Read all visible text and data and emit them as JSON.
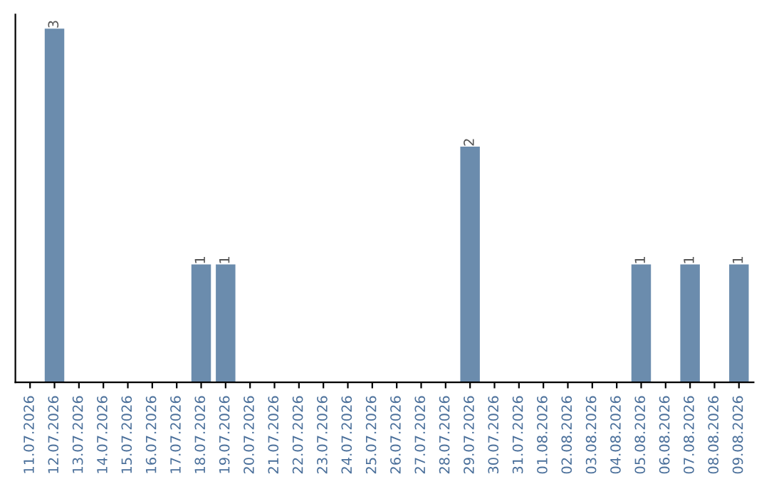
{
  "chart_data": {
    "type": "bar",
    "categories": [
      "11.07.2026",
      "12.07.2026",
      "13.07.2026",
      "14.07.2026",
      "15.07.2026",
      "16.07.2026",
      "17.07.2026",
      "18.07.2026",
      "19.07.2026",
      "20.07.2026",
      "21.07.2026",
      "22.07.2026",
      "23.07.2026",
      "24.07.2026",
      "25.07.2026",
      "26.07.2026",
      "27.07.2026",
      "28.07.2026",
      "29.07.2026",
      "30.07.2026",
      "31.07.2026",
      "01.08.2026",
      "02.08.2026",
      "03.08.2026",
      "04.08.2026",
      "05.08.2026",
      "06.08.2026",
      "07.08.2026",
      "08.08.2026",
      "09.08.2026"
    ],
    "values": [
      0,
      3,
      0,
      0,
      0,
      0,
      0,
      1,
      1,
      0,
      0,
      0,
      0,
      0,
      0,
      0,
      0,
      0,
      2,
      0,
      0,
      0,
      0,
      0,
      0,
      1,
      0,
      1,
      0,
      1
    ],
    "value_labels": [
      null,
      "3",
      null,
      null,
      null,
      null,
      null,
      "1",
      "1",
      null,
      null,
      null,
      null,
      null,
      null,
      null,
      null,
      null,
      "2",
      null,
      null,
      null,
      null,
      null,
      null,
      "1",
      null,
      "1",
      null,
      "1"
    ],
    "color": "#6b8cad",
    "tick_labels": "x",
    "grid": false,
    "legend": false
  }
}
